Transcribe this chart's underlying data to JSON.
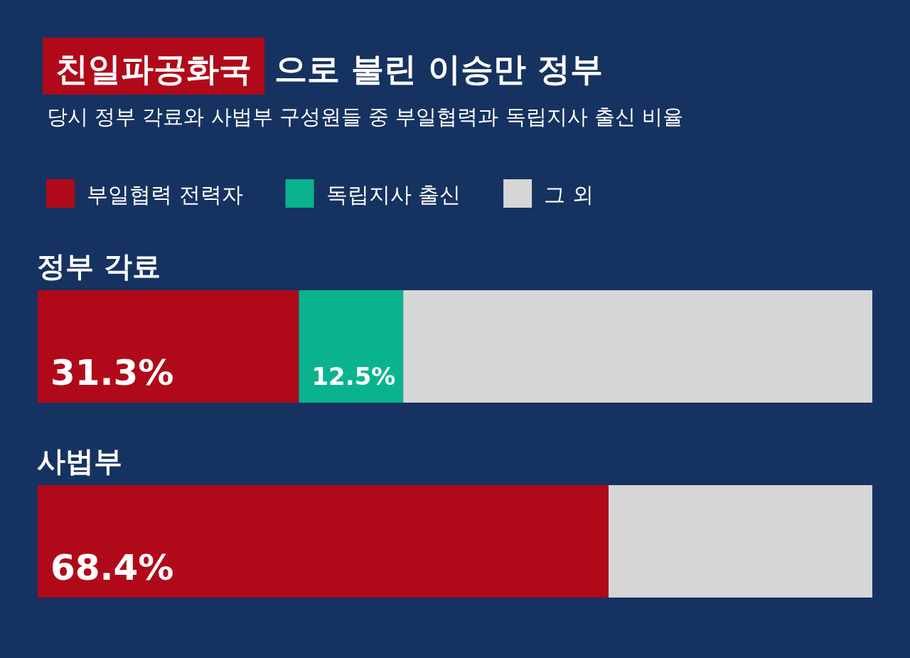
{
  "chart_data": {
    "type": "bar",
    "orientation": "horizontal",
    "stacked": true,
    "title": "친일파공화국 으로 불린 이승만 정부",
    "subtitle": "당시 정부 각료와 사법부 구성원들 중 부일협력과 독립지사 출신 비율",
    "categories": [
      "정부 각료",
      "사법부"
    ],
    "xlim": [
      0,
      100
    ],
    "legend": "top left",
    "series": [
      {
        "name": "부일협력 전력자",
        "color": "#b00a1a",
        "values": [
          31.3,
          68.4
        ],
        "value_labels": [
          "31.3%",
          "68.4%"
        ]
      },
      {
        "name": "독립지사 출신",
        "color": "#0ab38e",
        "values": [
          12.5,
          0
        ],
        "value_labels": [
          "12.5%",
          null
        ]
      },
      {
        "name": "그 외",
        "color": "#d6d6d6",
        "values": [
          56.2,
          31.6
        ],
        "value_labels": [
          null,
          null
        ]
      }
    ]
  }
}
